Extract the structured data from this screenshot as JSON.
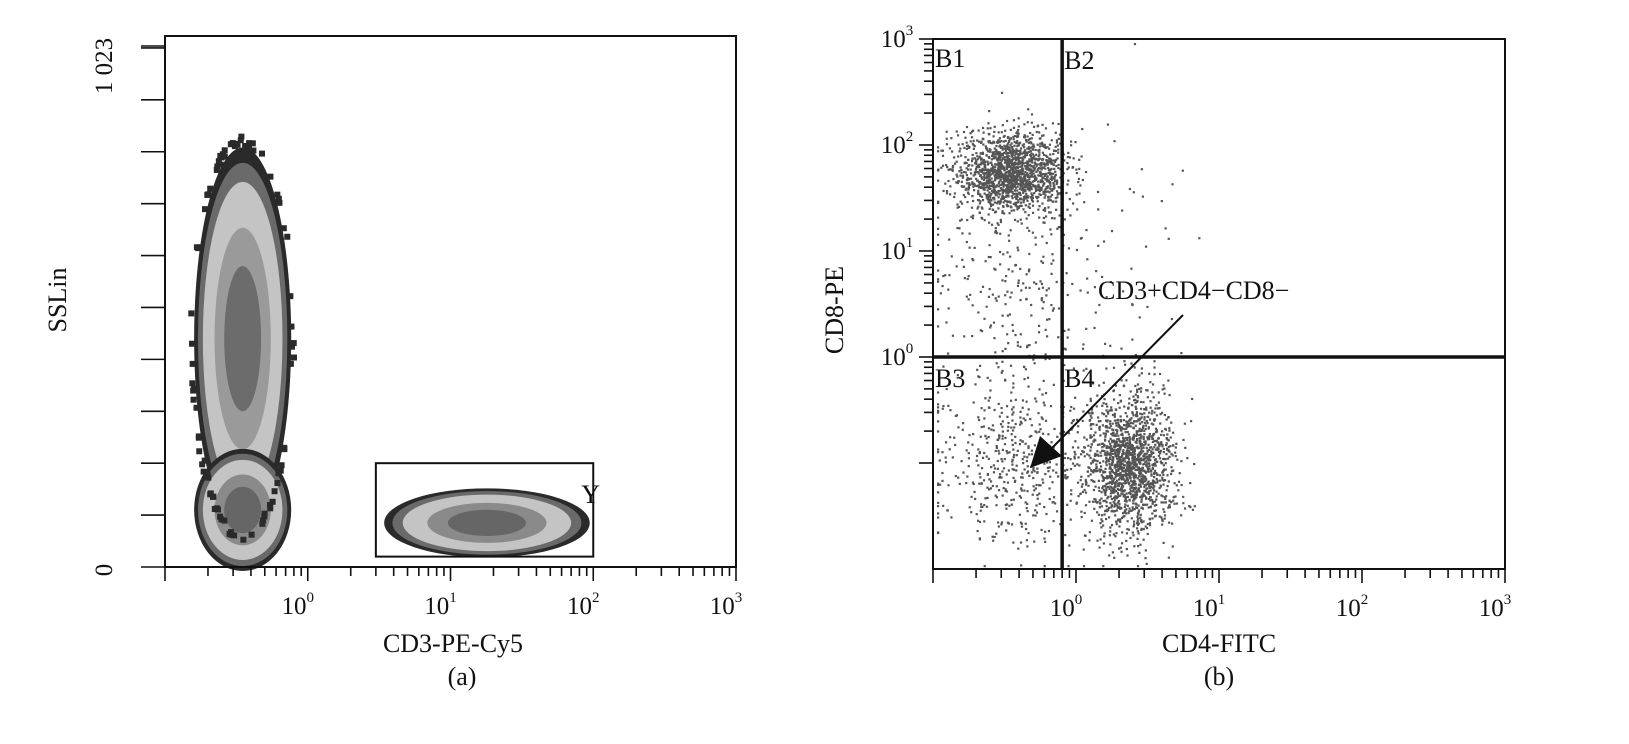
{
  "chart_data": [
    {
      "panel": "(a)",
      "type": "contour",
      "xlabel": "CD3-PE-Cy5",
      "ylabel": "SSLin",
      "xscale": "log",
      "xlim": [
        0.1,
        1000
      ],
      "x_tick_labels": [
        {
          "base": "10",
          "exp": "0"
        },
        {
          "base": "10",
          "exp": "1"
        },
        {
          "base": "10",
          "exp": "2"
        },
        {
          "base": "10",
          "exp": "3"
        }
      ],
      "ylim": [
        0,
        1023
      ],
      "y_tick_labels": [
        "0",
        "1 023"
      ],
      "gate": {
        "label": "Y",
        "x_range": [
          3,
          100
        ],
        "y_range": [
          20,
          200
        ]
      },
      "populations": [
        {
          "x_center": 0.35,
          "y_center": 440,
          "level_colors": [
            "#2a2a2a",
            "#6a6a6a",
            "#c4c4c4",
            "#9a9a9a",
            "#6c6c6c"
          ]
        },
        {
          "x_center": 0.35,
          "y_center": 110,
          "level_colors": [
            "#2a2a2a",
            "#6a6a6a",
            "#c4c4c4",
            "#8a8a8a",
            "#666666"
          ]
        },
        {
          "x_center": 18,
          "y_center": 85,
          "level_colors": [
            "#2a2a2a",
            "#6a6a6a",
            "#c4c4c4",
            "#8a8a8a",
            "#666666"
          ]
        }
      ]
    },
    {
      "panel": "(b)",
      "type": "scatter",
      "xlabel": "CD4-FITC",
      "ylabel": "CD8-PE",
      "xscale": "log",
      "yscale": "log",
      "xlim": [
        0.1,
        1000
      ],
      "ylim": [
        0.01,
        1000
      ],
      "x_tick_labels": [
        {
          "base": "10",
          "exp": "0"
        },
        {
          "base": "10",
          "exp": "1"
        },
        {
          "base": "10",
          "exp": "2"
        },
        {
          "base": "10",
          "exp": "3"
        }
      ],
      "y_tick_labels": [
        {
          "base": "10",
          "exp": "0"
        },
        {
          "base": "10",
          "exp": "1"
        },
        {
          "base": "10",
          "exp": "2"
        },
        {
          "base": "10",
          "exp": "3"
        }
      ],
      "quadrant_x": 0.8,
      "quadrant_y": 1,
      "quadrants": [
        "B1",
        "B2",
        "B3",
        "B4"
      ],
      "annotation": "CD3+CD4−CD8−",
      "point_color": "#555555",
      "clusters": [
        {
          "x_center": 0.35,
          "y_center": 55,
          "count": 1600
        },
        {
          "x_center": 2.3,
          "y_center": 0.1,
          "count": 1600
        },
        {
          "x_center": 0.35,
          "y_center": 0.1,
          "count": 450
        },
        {
          "x_center": 0.35,
          "y_center": 4,
          "count": 260
        },
        {
          "x_center": 2.3,
          "y_center": 5,
          "count": 40
        }
      ]
    }
  ]
}
